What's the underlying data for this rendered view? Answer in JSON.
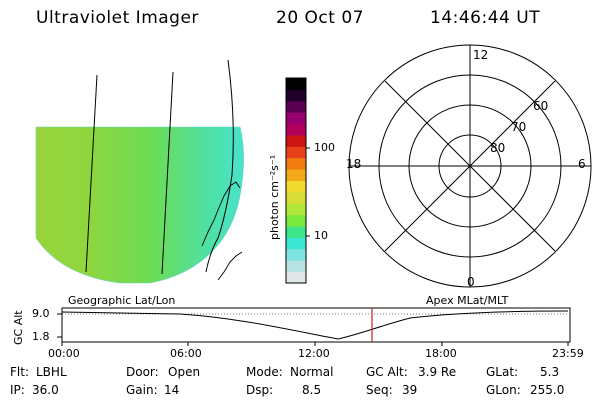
{
  "header": {
    "title": "Ultraviolet Imager",
    "date": "20 Oct 07",
    "time": "14:46:44 UT"
  },
  "colorbar": {
    "unit_label": "photon cm⁻²s⁻¹",
    "ticks": [
      "100",
      "10"
    ],
    "colors": [
      "#dfe7e7",
      "#b9e3e3",
      "#7fe3e0",
      "#3ce6d3",
      "#3fe58a",
      "#7ae83c",
      "#b4e73b",
      "#d8dd38",
      "#f2d930",
      "#f2a818",
      "#f07c10",
      "#e8401a",
      "#cc1414",
      "#b0005c",
      "#960070",
      "#5a0050",
      "#20002a",
      "#000000"
    ]
  },
  "polar_plot": {
    "lat_labels": [
      "80",
      "70",
      "60"
    ],
    "mlt_labels": {
      "top": "12",
      "bottom": "0",
      "left": "18",
      "right": "6"
    }
  },
  "timeline": {
    "left_label": "Geographic Lat/Lon",
    "right_label": "Apex MLat/MLT",
    "axis_title": "GC Alt",
    "y_ticks": [
      "9.0",
      "1.8"
    ],
    "x_ticks": [
      "00:00",
      "06:00",
      "12:00",
      "18:00",
      "23:59"
    ],
    "marker_color": "#cc2222"
  },
  "info": {
    "row1": [
      {
        "label": "Flt:",
        "value": "LBHL"
      },
      {
        "label": "Door:",
        "value": "Open"
      },
      {
        "label": "Mode:",
        "value": "Normal"
      },
      {
        "label": "GC Alt:",
        "value": "3.9 Re"
      },
      {
        "label": "GLat:",
        "value": "5.3"
      }
    ],
    "row2": [
      {
        "label": "IP:",
        "value": "36.0"
      },
      {
        "label": "Gain:",
        "value": "14"
      },
      {
        "label": "Dsp:",
        "value": "8.5"
      },
      {
        "label": "Seq:",
        "value": "39"
      },
      {
        "label": "GLon:",
        "value": "255.0"
      }
    ]
  }
}
